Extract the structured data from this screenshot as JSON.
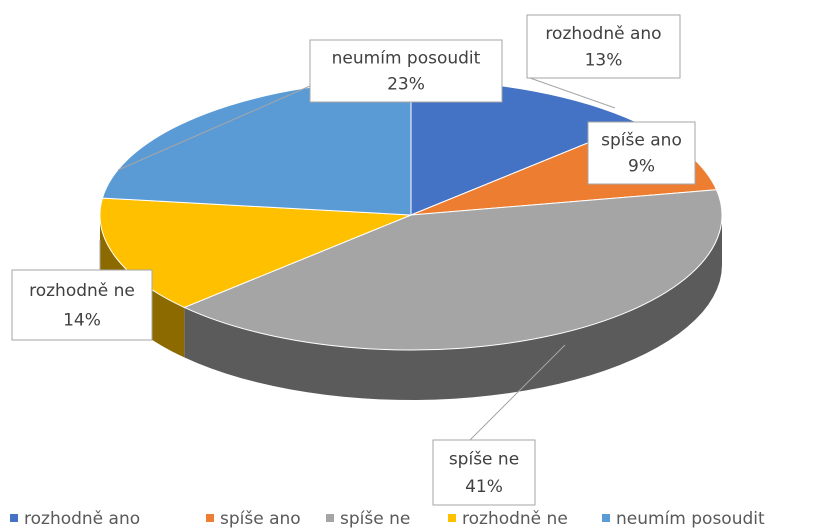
{
  "chart_data": {
    "type": "pie",
    "categories": [
      "rozhodně ano",
      "spíše ano",
      "spíše ne",
      "rozhodně ne",
      "neumím posoudit"
    ],
    "values": [
      13,
      9,
      41,
      14,
      23
    ],
    "value_labels": [
      "13%",
      "9%",
      "41%",
      "14%",
      "23%"
    ],
    "colors": [
      "#4472c4",
      "#ed7d31",
      "#a5a5a5",
      "#ffc000",
      "#5b9bd5"
    ],
    "legend": "bottom"
  }
}
